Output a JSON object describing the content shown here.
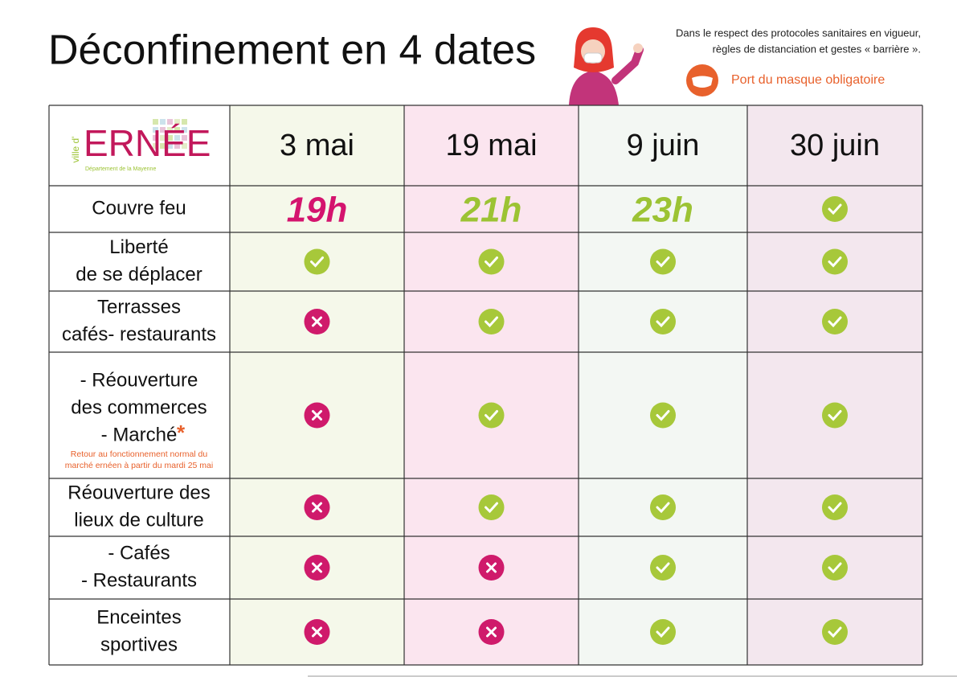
{
  "header": {
    "title": "Déconfinement en 4 dates",
    "notice": [
      "Dans le respect des protocoles sanitaires en vigueur,",
      "règles de distanciation et gestes « barrière »."
    ],
    "mask": "Port du masque obligatoire"
  },
  "logo": {
    "prefix": "ville d'",
    "name": "ERNÉE",
    "subtitle": "Département de la Mayenne"
  },
  "table": {
    "columns": [
      "3 mai",
      "19 mai",
      "9 juin",
      "30 juin"
    ],
    "rows": [
      {
        "label": [
          "Couvre feu"
        ],
        "cells": [
          "19h",
          "21h",
          "23h",
          true
        ]
      },
      {
        "label": [
          "Liberté",
          "de se déplacer"
        ],
        "cells": [
          true,
          true,
          true,
          true
        ]
      },
      {
        "label": [
          "Terrasses",
          "cafés- restaurants"
        ],
        "cells": [
          false,
          true,
          true,
          true
        ]
      },
      {
        "label": [
          "- Réouverture",
          "des commerces",
          "- Marché"
        ],
        "asterisk": "*",
        "note": [
          "Retour au fonctionnement normal du",
          "marché ernéen à partir du mardi 25 mai"
        ],
        "cells": [
          false,
          true,
          true,
          true
        ]
      },
      {
        "label": [
          "Réouverture des",
          "lieux de culture"
        ],
        "cells": [
          false,
          true,
          true,
          true
        ]
      },
      {
        "label": [
          "- Cafés",
          "- Restaurants"
        ],
        "cells": [
          false,
          false,
          true,
          true
        ]
      },
      {
        "label": [
          "Enceintes",
          "sportives"
        ],
        "cells": [
          false,
          false,
          true,
          true
        ]
      }
    ]
  }
}
